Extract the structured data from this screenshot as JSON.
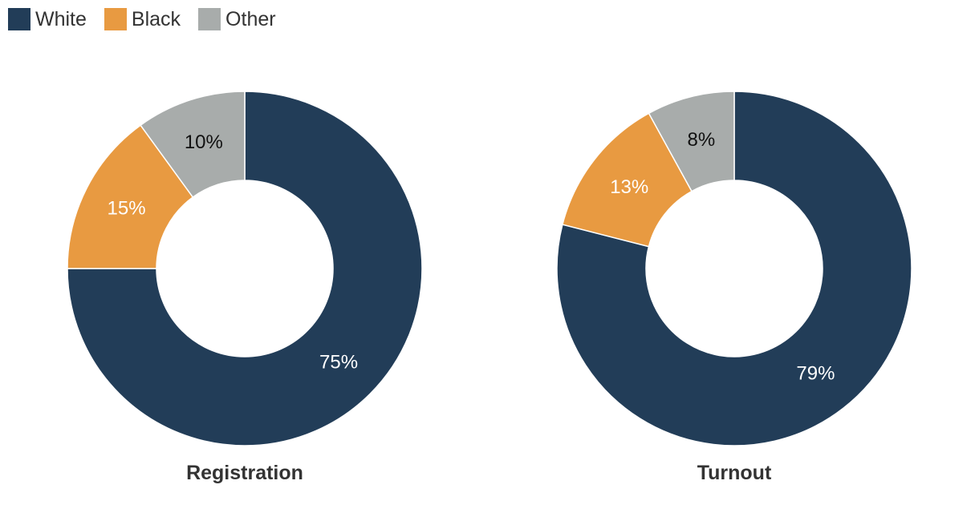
{
  "legend": [
    {
      "label": "White",
      "color": "#223d58"
    },
    {
      "label": "Black",
      "color": "#e89a41"
    },
    {
      "label": "Other",
      "color": "#a8acab"
    }
  ],
  "chart_data": [
    {
      "type": "pie",
      "title": "Registration",
      "categories": [
        "White",
        "Black",
        "Other"
      ],
      "values": [
        75,
        15,
        10
      ],
      "labels": [
        "75%",
        "15%",
        "10%"
      ],
      "colors": [
        "#223d58",
        "#e89a41",
        "#a8acab"
      ],
      "label_colors": [
        "#ffffff",
        "#ffffff",
        "#111111"
      ]
    },
    {
      "type": "pie",
      "title": "Turnout",
      "categories": [
        "White",
        "Black",
        "Other"
      ],
      "values": [
        79,
        13,
        8
      ],
      "labels": [
        "79%",
        "13%",
        "8%"
      ],
      "colors": [
        "#223d58",
        "#e89a41",
        "#a8acab"
      ],
      "label_colors": [
        "#ffffff",
        "#ffffff",
        "#111111"
      ]
    }
  ]
}
